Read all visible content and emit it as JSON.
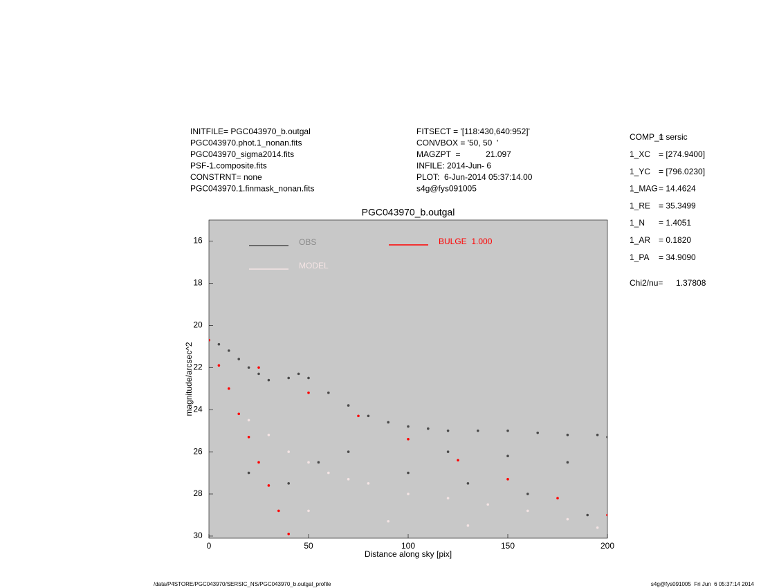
{
  "header": {
    "left": [
      "INITFILE= PGC043970_b.outgal",
      "PGC043970.phot.1_nonan.fits",
      "PGC043970_sigma2014.fits",
      "PSF-1.composite.fits",
      "CONSTRNT= none",
      "PGC043970.1.finmask_nonan.fits"
    ],
    "middle": [
      "FITSECT = '[118:430,640:952]'",
      "CONVBOX = '50, 50  '",
      "MAGZPT  =           21.097",
      "INFILE: 2014-Jun- 6",
      "PLOT:  6-Jun-2014 05:37:14.00",
      "s4g@fys091005"
    ]
  },
  "params": [
    {
      "label": "COMP_1",
      "value": "= sersic"
    },
    {
      "label": "1_XC",
      "value": "= [274.9400]"
    },
    {
      "label": "1_YC",
      "value": "= [796.0230]"
    },
    {
      "label": "1_MAG",
      "value": "= 14.4624"
    },
    {
      "label": "1_RE",
      "value": "= 35.3499"
    },
    {
      "label": "1_N",
      "value": "= 1.4051"
    },
    {
      "label": "1_AR",
      "value": "= 0.1820"
    },
    {
      "label": "1_PA",
      "value": "= 34.9090"
    }
  ],
  "chi2": {
    "label": "Chi2/nu=",
    "value": "1.37808"
  },
  "footer": {
    "left": "/data/P4STORE/PGC043970/SERSIC_NS/PGC043970_b.outgal_profile",
    "right": "s4g@fys091005  Fri Jun  6 05:37:14 2014"
  },
  "chart_data": {
    "type": "scatter",
    "title": "PGC043970_b.outgal",
    "xlabel": "Distance along sky [pix]",
    "ylabel": "magnitude/arcsec^2",
    "xlim": [
      0,
      200
    ],
    "ylim": [
      15,
      30.1
    ],
    "xticks": [
      0,
      50,
      100,
      150,
      200
    ],
    "yticks": [
      16,
      18,
      20,
      22,
      24,
      26,
      28,
      30
    ],
    "background": "#c8c8c8",
    "series": [
      {
        "name": "OBS",
        "color": "#4a4a4a",
        "x": [
          0,
          5,
          10,
          15,
          20,
          25,
          30,
          40,
          45,
          50,
          60,
          70,
          80,
          90,
          100,
          110,
          120,
          135,
          150,
          165,
          180,
          195,
          200,
          20,
          40,
          55,
          70,
          100,
          130,
          160,
          190,
          120,
          150,
          180
        ],
        "values": [
          20.7,
          20.9,
          21.2,
          21.6,
          22.0,
          22.3,
          22.6,
          22.5,
          22.3,
          22.5,
          23.2,
          23.8,
          24.3,
          24.6,
          24.8,
          24.9,
          25.0,
          25.0,
          25.0,
          25.1,
          25.2,
          25.2,
          25.3,
          27.0,
          27.5,
          26.5,
          26.0,
          27.0,
          27.5,
          28.0,
          29.0,
          26.0,
          26.2,
          26.5
        ]
      },
      {
        "name": "MODEL",
        "color": "#f4e4e4",
        "x": [
          10,
          20,
          30,
          40,
          50,
          60,
          70,
          80,
          100,
          120,
          140,
          160,
          180,
          195,
          50,
          90,
          130
        ],
        "values": [
          23.0,
          24.5,
          25.2,
          26.0,
          26.5,
          27.0,
          27.3,
          27.5,
          28.0,
          28.2,
          28.5,
          28.8,
          29.2,
          29.6,
          28.8,
          29.3,
          29.5
        ]
      },
      {
        "name": "BULGE  1.000",
        "color": "#ff0000",
        "x": [
          0,
          5,
          10,
          15,
          20,
          25,
          30,
          35,
          40,
          25,
          50,
          75,
          100,
          125,
          150,
          175,
          200
        ],
        "values": [
          20.7,
          21.9,
          23.0,
          24.2,
          25.3,
          26.5,
          27.6,
          28.8,
          29.9,
          22.0,
          23.2,
          24.3,
          25.4,
          26.4,
          27.3,
          28.2,
          29.0
        ]
      }
    ]
  }
}
